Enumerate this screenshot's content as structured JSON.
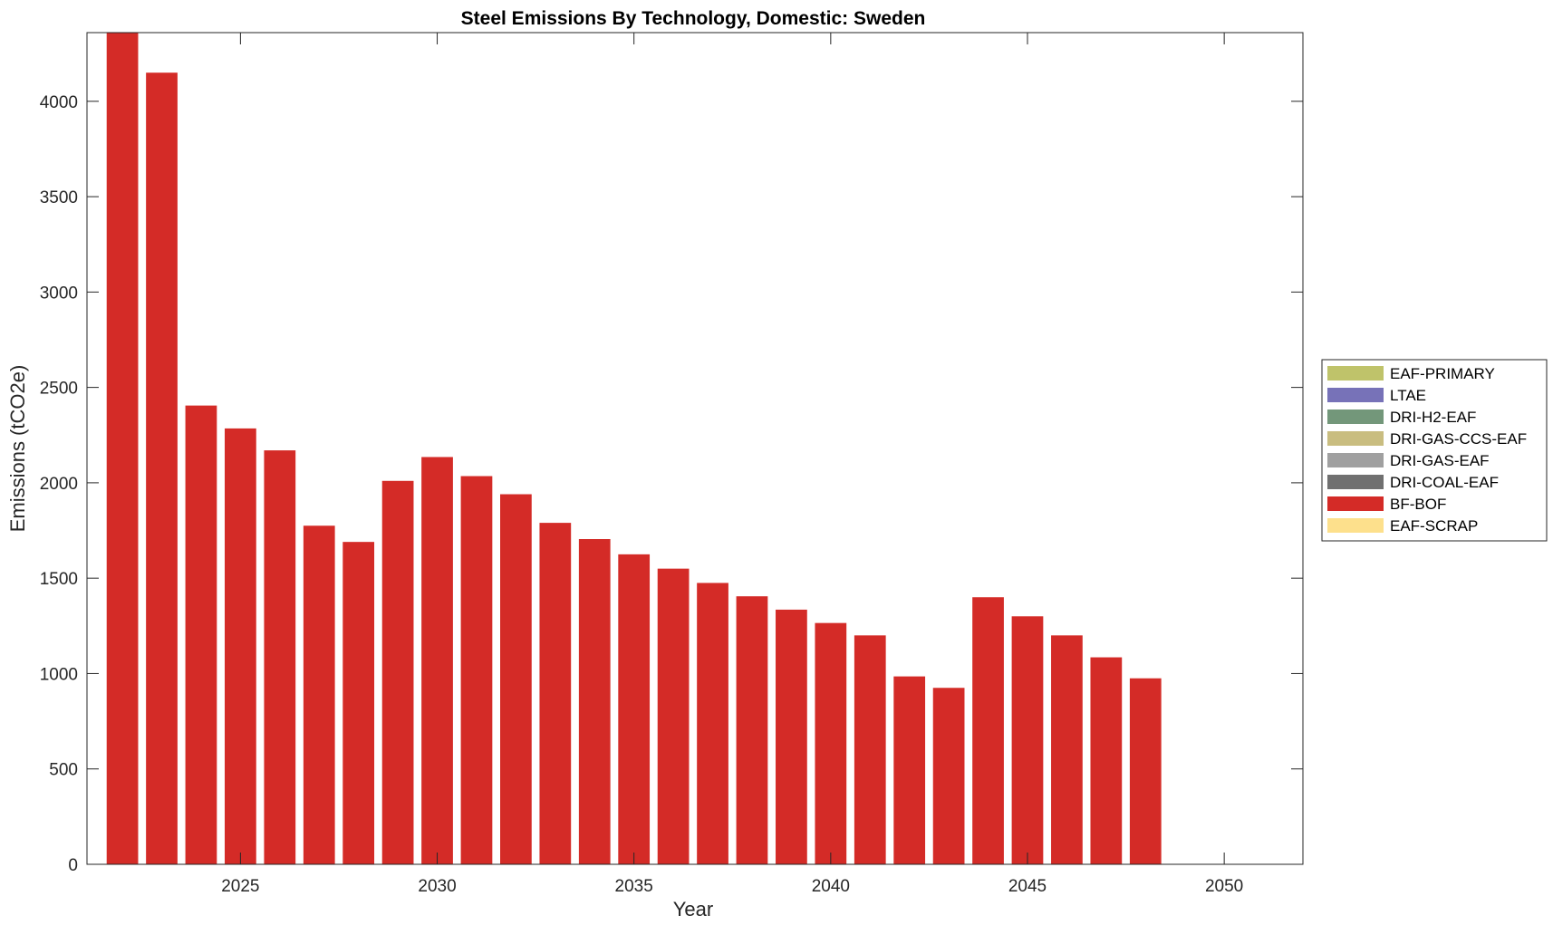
{
  "chart_data": {
    "type": "bar",
    "stacked": true,
    "title": "Steel Emissions By Technology, Domestic: Sweden",
    "xlabel": "Year",
    "ylabel": "Emissions (tCO2e)",
    "xlim": [
      2021.1,
      2052
    ],
    "ylim": [
      0,
      4360
    ],
    "xticks": [
      2025,
      2030,
      2035,
      2040,
      2045,
      2050
    ],
    "yticks": [
      0,
      500,
      1000,
      1500,
      2000,
      2500,
      3000,
      3500,
      4000
    ],
    "grid": false,
    "legend_position": "right",
    "categories": [
      2022,
      2023,
      2024,
      2025,
      2026,
      2027,
      2028,
      2029,
      2030,
      2031,
      2032,
      2033,
      2034,
      2035,
      2036,
      2037,
      2038,
      2039,
      2040,
      2041,
      2042,
      2043,
      2044,
      2045,
      2046,
      2047,
      2048
    ],
    "series": [
      {
        "name": "EAF-PRIMARY",
        "color": "#bfc36a",
        "values": [
          0,
          0,
          0,
          0,
          0,
          0,
          0,
          0,
          0,
          0,
          0,
          0,
          0,
          0,
          0,
          0,
          0,
          0,
          0,
          0,
          0,
          0,
          0,
          0,
          0,
          0,
          0
        ]
      },
      {
        "name": "LTAE",
        "color": "#7772b8",
        "values": [
          0,
          0,
          0,
          0,
          0,
          0,
          0,
          0,
          0,
          0,
          0,
          0,
          0,
          0,
          0,
          0,
          0,
          0,
          0,
          0,
          0,
          0,
          0,
          0,
          0,
          0,
          0
        ]
      },
      {
        "name": "DRI-H2-EAF",
        "color": "#73977a",
        "values": [
          0,
          0,
          0,
          0,
          0,
          0,
          0,
          0,
          0,
          0,
          0,
          0,
          0,
          0,
          0,
          0,
          0,
          0,
          0,
          0,
          0,
          0,
          0,
          0,
          0,
          0,
          0
        ]
      },
      {
        "name": "DRI-GAS-CCS-EAF",
        "color": "#c9bd80",
        "values": [
          0,
          0,
          0,
          0,
          0,
          0,
          0,
          0,
          0,
          0,
          0,
          0,
          0,
          0,
          0,
          0,
          0,
          0,
          0,
          0,
          0,
          0,
          0,
          0,
          0,
          0,
          0
        ]
      },
      {
        "name": "DRI-GAS-EAF",
        "color": "#a0a0a0",
        "values": [
          0,
          0,
          0,
          0,
          0,
          0,
          0,
          0,
          0,
          0,
          0,
          0,
          0,
          0,
          0,
          0,
          0,
          0,
          0,
          0,
          0,
          0,
          0,
          0,
          0,
          0,
          0
        ]
      },
      {
        "name": "DRI-COAL-EAF",
        "color": "#707070",
        "values": [
          0,
          0,
          0,
          0,
          0,
          0,
          0,
          0,
          0,
          0,
          0,
          0,
          0,
          0,
          0,
          0,
          0,
          0,
          0,
          0,
          0,
          0,
          0,
          0,
          0,
          0,
          0
        ]
      },
      {
        "name": "BF-BOF",
        "color": "#d42b27",
        "values": [
          4360,
          4150,
          2405,
          2285,
          2170,
          1775,
          1690,
          2010,
          2135,
          2035,
          1940,
          1790,
          1705,
          1625,
          1550,
          1475,
          1405,
          1335,
          1265,
          1200,
          985,
          925,
          1400,
          1300,
          1200,
          1085,
          975
        ]
      },
      {
        "name": "EAF-SCRAP",
        "color": "#fde08c",
        "values": [
          0,
          0,
          0,
          0,
          0,
          0,
          0,
          0,
          0,
          0,
          0,
          0,
          0,
          0,
          0,
          0,
          0,
          0,
          0,
          0,
          0,
          0,
          0,
          0,
          0,
          0,
          0
        ]
      }
    ]
  }
}
